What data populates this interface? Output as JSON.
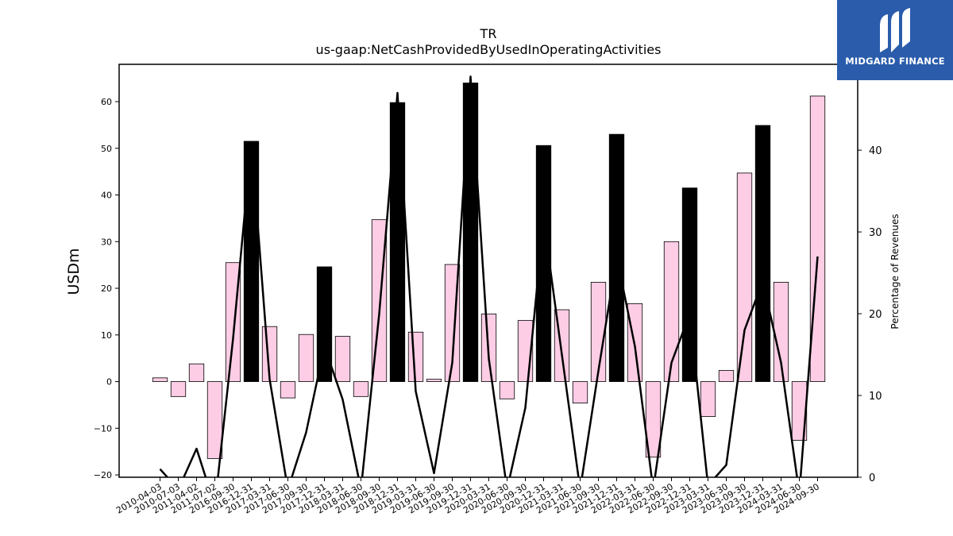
{
  "brand": {
    "name": "MIDGARD FINANCE",
    "logo_icon": "midgard-m-icon",
    "bg_color": "#2a5cab"
  },
  "chart_data": {
    "type": "bar",
    "title": "TR",
    "subtitle": "us-gaap:NetCashProvidedByUsedInOperatingActivities",
    "ylabel": "USDm",
    "y2label": "Percentage of Revenues",
    "ylim": [
      -20.5,
      68
    ],
    "y2lim": [
      0,
      50.5
    ],
    "yticks": [
      -20,
      -10,
      0,
      10,
      20,
      30,
      40,
      50,
      60
    ],
    "y2ticks": [
      0,
      10,
      20,
      30,
      40
    ],
    "grid": false,
    "colors": {
      "q4_bar": "#000000",
      "other_bar": "#fccde5",
      "line": "#000000"
    },
    "categories": [
      "2010-04-03",
      "2010-07-03",
      "2011-04-02",
      "2011-07-02",
      "2016-09-30",
      "2016-12-31",
      "2017-03-31",
      "2017-06-30",
      "2017-09-30",
      "2017-12-31",
      "2018-03-31",
      "2018-06-30",
      "2018-09-30",
      "2018-12-31",
      "2019-03-31",
      "2019-06-30",
      "2019-09-30",
      "2019-12-31",
      "2020-03-31",
      "2020-06-30",
      "2020-09-30",
      "2020-12-31",
      "2021-03-31",
      "2021-06-30",
      "2021-09-30",
      "2021-12-31",
      "2022-03-31",
      "2022-06-30",
      "2022-09-30",
      "2022-12-31",
      "2023-03-31",
      "2023-06-30",
      "2023-09-30",
      "2023-12-31",
      "2024-03-31",
      "2024-06-30",
      "2024-09-30"
    ],
    "series": [
      {
        "type": "bar",
        "values": [
          0.8,
          -3.2,
          3.8,
          -16.5,
          25.5,
          51.5,
          11.8,
          -3.5,
          10.1,
          24.6,
          9.7,
          -3.2,
          34.7,
          59.8,
          10.6,
          0.5,
          25.1,
          64.0,
          14.5,
          -3.7,
          13.1,
          50.6,
          15.4,
          -4.6,
          21.3,
          53.0,
          16.7,
          -16.2,
          30.0,
          41.5,
          -7.5,
          2.4,
          44.7,
          54.9,
          21.3,
          -12.6,
          61.2
        ]
      },
      {
        "type": "line",
        "axis": "right",
        "values": [
          1.0,
          -1.5,
          3.5,
          -3.5,
          17.0,
          41.0,
          12.0,
          -1.5,
          5.5,
          16.0,
          9.5,
          -1.5,
          20.0,
          47.0,
          10.5,
          0.5,
          14.0,
          49.0,
          14.5,
          -1.5,
          8.5,
          31.5,
          15.0,
          -1.5,
          13.0,
          27.0,
          16.0,
          -1.5,
          14.0,
          20.0,
          -1.0,
          1.5,
          18.0,
          24.0,
          14.0,
          -2.0,
          27.0
        ]
      }
    ]
  }
}
